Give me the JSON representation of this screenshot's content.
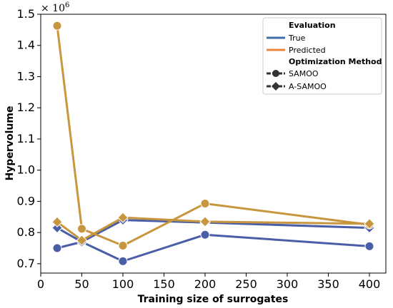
{
  "chart_data": {
    "type": "line",
    "title": "",
    "xlabel": "Training size of surrogates",
    "ylabel": "Hypervolume",
    "scale_label": "× 10",
    "scale_exponent": "6",
    "xlim": [
      0,
      420
    ],
    "ylim": [
      0.67,
      1.5
    ],
    "xticks": [
      0,
      50,
      100,
      150,
      200,
      250,
      300,
      350,
      400
    ],
    "yticks": [
      0.7,
      0.8,
      0.9,
      1.0,
      1.1,
      1.2,
      1.3,
      1.4,
      1.5
    ],
    "xtick_labels": [
      "0",
      "50",
      "100",
      "150",
      "200",
      "250",
      "300",
      "350",
      "400"
    ],
    "ytick_labels": [
      "0.7",
      "0.8",
      "0.9",
      "1.0",
      "1.1",
      "1.2",
      "1.3",
      "1.4",
      "1.5"
    ],
    "grid": false,
    "legend_position": "top-right",
    "x": [
      20,
      50,
      100,
      200,
      400
    ],
    "series": [
      {
        "evaluation": "True",
        "method": "SAMOO",
        "color": "#4a5ea8",
        "marker": "circle",
        "values": [
          0.75,
          0.77,
          0.708,
          0.793,
          0.756
        ]
      },
      {
        "evaluation": "True",
        "method": "A-SAMOO",
        "color": "#4a5ea8",
        "marker": "diamond",
        "values": [
          0.815,
          0.77,
          0.84,
          0.832,
          0.815
        ]
      },
      {
        "evaluation": "Predicted",
        "method": "SAMOO",
        "color": "#c8963e",
        "marker": "circle",
        "values": [
          1.463,
          0.812,
          0.758,
          0.893,
          0.825
        ]
      },
      {
        "evaluation": "Predicted",
        "method": "A-SAMOO",
        "color": "#c8963e",
        "marker": "diamond",
        "values": [
          0.834,
          0.775,
          0.848,
          0.835,
          0.828
        ]
      }
    ],
    "legend": {
      "evaluation_title": "Evaluation",
      "evaluation_entries": [
        {
          "label": "True",
          "color": "#3f6ea8"
        },
        {
          "label": "Predicted",
          "color": "#e8853a"
        }
      ],
      "method_title": "Optimization Method",
      "method_entries": [
        {
          "label": "SAMOO",
          "marker": "circle"
        },
        {
          "label": "A-SAMOO",
          "marker": "diamond"
        }
      ]
    }
  }
}
